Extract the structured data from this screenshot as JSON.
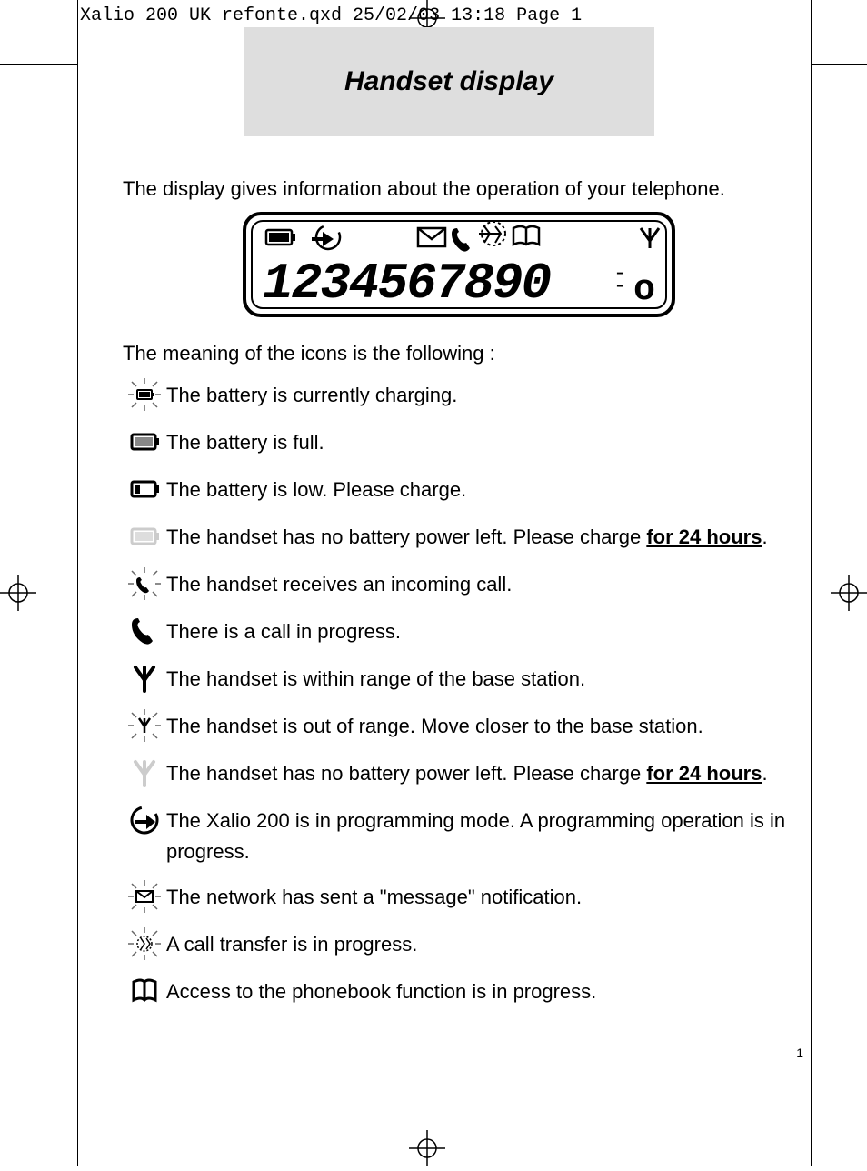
{
  "header": {
    "file_info": "Xalio 200 UK refonte.qxd  25/02/03  13:18  Page 1"
  },
  "title": "Handset display",
  "intro": "The display gives information about the operation of your telephone.",
  "lcd": {
    "digits": "1234567890",
    "suffix": "o"
  },
  "subhead": "The meaning of the icons is the following :",
  "items": [
    {
      "icon": "battery-charging-icon",
      "text": "The battery is currently charging."
    },
    {
      "icon": "battery-full-icon",
      "text": "The battery is full."
    },
    {
      "icon": "battery-low-icon",
      "text": "The battery is low. Please charge."
    },
    {
      "icon": "battery-empty-icon",
      "text": "The handset has no battery power left. Please charge ",
      "bold": "for 24 hours",
      "after": "."
    },
    {
      "icon": "incoming-call-icon",
      "text": "The handset receives an incoming call."
    },
    {
      "icon": "call-progress-icon",
      "text": "There is a call in progress."
    },
    {
      "icon": "antenna-icon",
      "text": "The handset is within range of the base station."
    },
    {
      "icon": "antenna-blink-icon",
      "text": "The handset is out of range. Move closer to the base station."
    },
    {
      "icon": "antenna-faded-icon",
      "text": "The handset has no battery power left. Please charge ",
      "bold": "for 24 hours",
      "after": "."
    },
    {
      "icon": "programming-icon",
      "text": "The Xalio 200 is in programming mode. A programming operation is in progress."
    },
    {
      "icon": "message-icon",
      "text": "The network has sent a \"message\" notification."
    },
    {
      "icon": "transfer-icon",
      "text": "A call transfer is in progress."
    },
    {
      "icon": "phonebook-icon",
      "text": "Access to the phonebook function is in progress."
    }
  ],
  "page_number": "1",
  "colors": {
    "title_bg": "#dedede",
    "text": "#000000",
    "faded": "#cccccc"
  }
}
